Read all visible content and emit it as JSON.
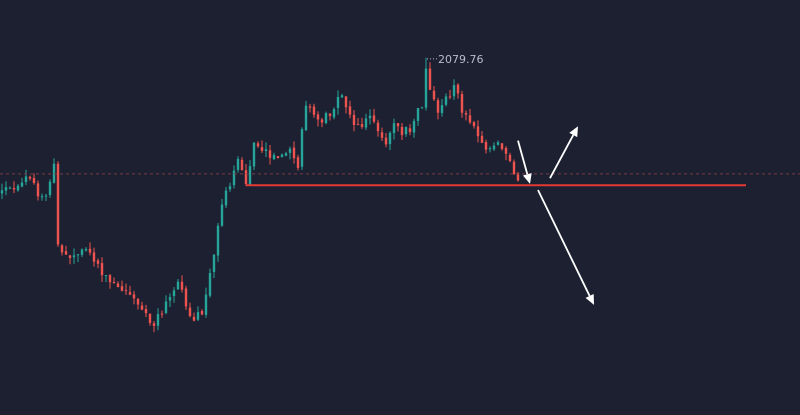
{
  "chart_data": {
    "type": "candlestick",
    "title": "",
    "xlabel": "",
    "ylabel": "",
    "ylim": [
      1998,
      2093
    ],
    "grid": false,
    "colors": {
      "background": "#1c2030",
      "up": "#26a69a",
      "down": "#ef5350",
      "level": "#e53935",
      "reference": "#7a3a44",
      "arrow": "#ffffff",
      "high_marker": "#b8bcc8"
    },
    "high_annotation": {
      "label": "2079.76",
      "value": 2079.76
    },
    "reference_line": {
      "value": 2053.2,
      "style": "dashed"
    },
    "support_level": {
      "value": 2050.6,
      "from_index": 61,
      "to_index": 186
    },
    "scenario_arrows": [
      {
        "name": "pullback",
        "from": {
          "index": 129,
          "value": 2060.8
        },
        "to": {
          "index": 132,
          "value": 2050.9
        }
      },
      {
        "name": "bullish",
        "from": {
          "index": 137,
          "value": 2052.2
        },
        "to": {
          "index": 144,
          "value": 2064.1
        }
      },
      {
        "name": "bearish",
        "from": {
          "index": 134,
          "value": 2049.5
        },
        "to": {
          "index": 148,
          "value": 2023.2
        }
      }
    ],
    "anchors": [
      [
        0,
        2049
      ],
      [
        3,
        2050.5
      ],
      [
        6,
        2052
      ],
      [
        9,
        2049
      ],
      [
        11,
        2048.5
      ],
      [
        13,
        2055
      ],
      [
        14,
        2036
      ],
      [
        18,
        2034
      ],
      [
        21,
        2036
      ],
      [
        24,
        2032
      ],
      [
        27,
        2029
      ],
      [
        31,
        2026.5
      ],
      [
        35,
        2022
      ],
      [
        38,
        2019
      ],
      [
        41,
        2023
      ],
      [
        44,
        2029
      ],
      [
        47,
        2019.5
      ],
      [
        50,
        2021
      ],
      [
        53,
        2035
      ],
      [
        55,
        2047
      ],
      [
        57,
        2050
      ],
      [
        59,
        2057
      ],
      [
        61,
        2050
      ],
      [
        63,
        2061
      ],
      [
        66,
        2058
      ],
      [
        69,
        2056
      ],
      [
        72,
        2059
      ],
      [
        74,
        2055.5
      ],
      [
        76,
        2069
      ],
      [
        78,
        2067
      ],
      [
        80,
        2064.5
      ],
      [
        83,
        2069
      ],
      [
        85,
        2070.5
      ],
      [
        87,
        2066
      ],
      [
        90,
        2063
      ],
      [
        92,
        2067
      ],
      [
        94,
        2062
      ],
      [
        96,
        2061
      ],
      [
        98,
        2064
      ],
      [
        100,
        2063
      ],
      [
        102,
        2062.5
      ],
      [
        104,
        2067.5
      ],
      [
        105,
        2069
      ],
      [
        106,
        2078
      ],
      [
        107,
        2072
      ],
      [
        109,
        2068
      ],
      [
        111,
        2071
      ],
      [
        113,
        2073
      ],
      [
        115,
        2068
      ],
      [
        118,
        2063
      ],
      [
        121,
        2059
      ],
      [
        124,
        2060
      ],
      [
        126,
        2058
      ],
      [
        128,
        2054
      ],
      [
        129,
        2051.8
      ]
    ],
    "candle_count": 130
  }
}
